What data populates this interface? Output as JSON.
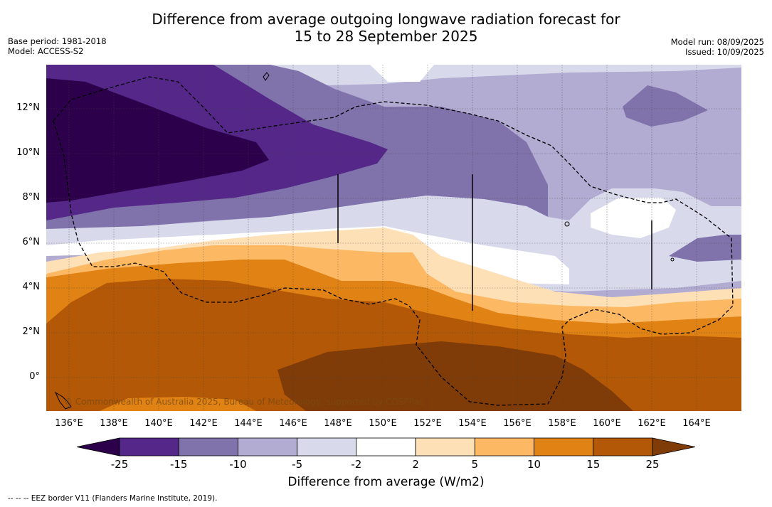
{
  "title_line1": "Difference from average outgoing longwave radiation forecast for",
  "title_line2": "15 to 28 September 2025",
  "meta_left": [
    "Base period: 1981-2018",
    "Model: ACCESS-S2"
  ],
  "meta_right": [
    "Model run: 08/09/2025",
    "Issued: 10/09/2025"
  ],
  "lon_labels": [
    "136°E",
    "138°E",
    "140°E",
    "142°E",
    "144°E",
    "146°E",
    "148°E",
    "150°E",
    "152°E",
    "154°E",
    "156°E",
    "158°E",
    "160°E",
    "162°E",
    "164°E"
  ],
  "lat_labels": [
    "12°N",
    "10°N",
    "8°N",
    "6°N",
    "4°N",
    "2°N",
    "0°"
  ],
  "colorbar": {
    "ticks": [
      "-25",
      "-15",
      "-10",
      "-5",
      "-2",
      "2",
      "5",
      "10",
      "15",
      "25"
    ],
    "colors": [
      "#2d004b",
      "#542788",
      "#8073ac",
      "#b2abd2",
      "#d8daeb",
      "#ffffff",
      "#fee0b6",
      "#fdb863",
      "#e08214",
      "#b35806",
      "#7f3b08"
    ],
    "label": "Difference from average (W/m2)"
  },
  "copyright": "© Commonwealth of Australia 2025, Bureau of Meteorology, supported by COSPPac",
  "footnote": "-- -- -- EEZ border V11 (Flanders Marine Institute, 2019)."
}
